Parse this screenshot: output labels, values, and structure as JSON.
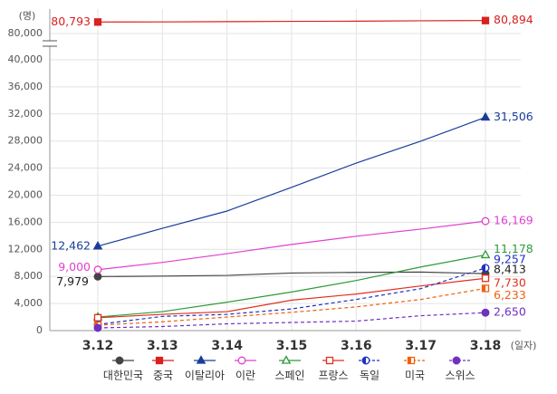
{
  "chart_data": {
    "type": "line",
    "y_unit": "(명)",
    "x_unit": "(일자)",
    "categories": [
      "3.12",
      "3.13",
      "3.14",
      "3.15",
      "3.16",
      "3.17",
      "3.18"
    ],
    "ylim": [
      0,
      40000
    ],
    "yticks": [
      0,
      {
        "value": 4000,
        "label": "4,000"
      },
      {
        "value": 8000,
        "label": "8,000"
      },
      {
        "value": 12000,
        "label": "12,000"
      },
      {
        "value": 16000,
        "label": "16,000"
      },
      {
        "value": 20000,
        "label": "20,000"
      },
      {
        "value": 24000,
        "label": "24,000"
      },
      {
        "value": 28000,
        "label": "28,000"
      },
      {
        "value": 32000,
        "label": "32,000"
      },
      {
        "value": 36000,
        "label": "36,000"
      },
      {
        "value": 40000,
        "label": "40,000"
      }
    ],
    "upper_ylim": [
      80000,
      81000
    ],
    "upper_yticks": [
      {
        "value": 80000,
        "label": "80,000"
      }
    ],
    "grid": true,
    "series": [
      {
        "name": "대한민국",
        "color": "#444444",
        "marker": "circle",
        "fill": "solid",
        "dashed": false,
        "values": [
          7979,
          8050,
          8150,
          8500,
          8600,
          8650,
          8413
        ],
        "value_labels": [
          "7,979",
          null,
          null,
          null,
          null,
          null,
          "8,413"
        ]
      },
      {
        "name": "중국",
        "color": "#d9211e",
        "marker": "square",
        "fill": "solid",
        "dashed": false,
        "values": [
          80793,
          80800,
          80820,
          80840,
          80850,
          80880,
          80894
        ],
        "value_labels": [
          "80,793",
          null,
          null,
          null,
          null,
          null,
          "80,894"
        ]
      },
      {
        "name": "이탈리아",
        "color": "#1a3d9a",
        "marker": "triangle",
        "fill": "solid",
        "dashed": false,
        "values": [
          12462,
          15113,
          17660,
          21157,
          24747,
          27980,
          31506
        ],
        "value_labels": [
          "12,462",
          null,
          null,
          null,
          null,
          null,
          "31,506"
        ]
      },
      {
        "name": "이란",
        "color": "#e040d0",
        "marker": "circle",
        "fill": "open",
        "dashed": false,
        "values": [
          9000,
          10075,
          11364,
          12729,
          13938,
          14991,
          16169
        ],
        "value_labels": [
          "9,000",
          null,
          null,
          null,
          null,
          null,
          "16,169"
        ]
      },
      {
        "name": "스페인",
        "color": "#2e9a3a",
        "marker": "triangle",
        "fill": "open",
        "dashed": false,
        "values": [
          2000,
          2800,
          4200,
          5700,
          7400,
          9400,
          11178
        ],
        "value_labels": [
          null,
          null,
          null,
          null,
          null,
          null,
          "11,178"
        ]
      },
      {
        "name": "프랑스",
        "color": "#e0301e",
        "marker": "square",
        "fill": "open",
        "dashed": false,
        "values": [
          1900,
          2400,
          2800,
          4500,
          5400,
          6600,
          7730
        ],
        "value_labels": [
          null,
          null,
          null,
          null,
          null,
          null,
          "7,730"
        ]
      },
      {
        "name": "독일",
        "color": "#2030c0",
        "marker": "circle",
        "fill": "half",
        "dashed": true,
        "values": [
          900,
          2100,
          2400,
          3200,
          4600,
          6200,
          9257
        ],
        "value_labels": [
          null,
          null,
          null,
          null,
          null,
          null,
          "9,257"
        ]
      },
      {
        "name": "미국",
        "color": "#f06010",
        "marker": "square",
        "fill": "half",
        "dashed": true,
        "values": [
          800,
          1300,
          2000,
          2700,
          3500,
          4600,
          6233
        ],
        "value_labels": [
          null,
          null,
          null,
          null,
          null,
          null,
          "6,233"
        ]
      },
      {
        "name": "스위스",
        "color": "#7030c0",
        "marker": "circle",
        "fill": "solid",
        "dashed": true,
        "values": [
          400,
          600,
          1000,
          1200,
          1400,
          2200,
          2650
        ],
        "value_labels": [
          null,
          null,
          null,
          null,
          null,
          null,
          "2,650"
        ]
      }
    ]
  }
}
